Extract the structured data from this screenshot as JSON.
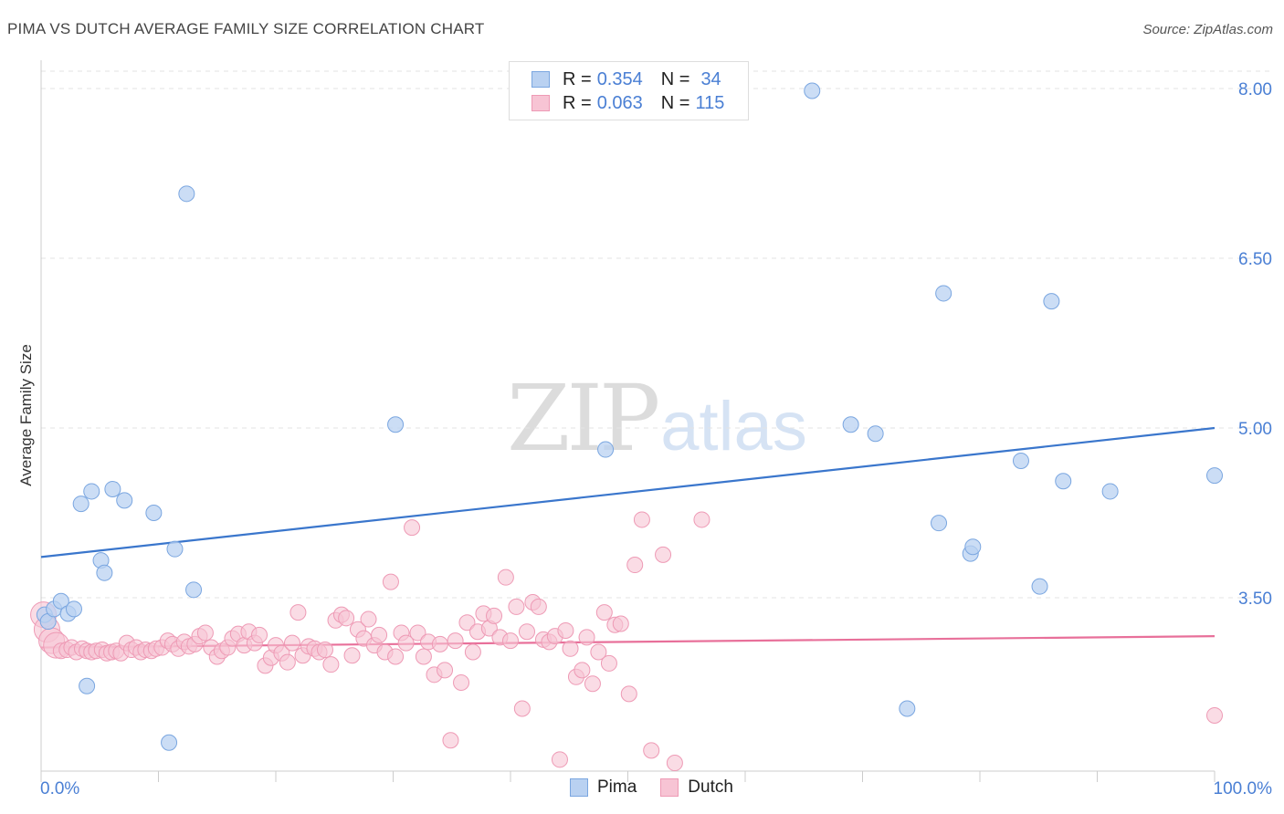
{
  "header": {
    "title": "PIMA VS DUTCH AVERAGE FAMILY SIZE CORRELATION CHART",
    "source": "Source: ZipAtlas.com"
  },
  "legend_top": {
    "pima": {
      "r_label": "R =",
      "r_value": "0.354",
      "n_label": "N =",
      "n_value": "34"
    },
    "dutch": {
      "r_label": "R =",
      "r_value": "0.063",
      "n_label": "N =",
      "n_value": "115"
    }
  },
  "legend_bottom": {
    "pima": "Pima",
    "dutch": "Dutch"
  },
  "watermark": {
    "zip": "ZIP",
    "atlas": "atlas"
  },
  "colors": {
    "pima_fill": "#b9d1f1",
    "pima_stroke": "#7aa6e0",
    "pima_line": "#3a76cc",
    "dutch_fill": "#f7c4d4",
    "dutch_stroke": "#ee9ab5",
    "dutch_line": "#e8709a",
    "tick_text": "#4a7fd4",
    "grid": "#e3e3e3"
  },
  "chart_data": {
    "type": "scatter",
    "title": "PIMA VS DUTCH AVERAGE FAMILY SIZE CORRELATION CHART",
    "xlabel": "",
    "ylabel": "Average Family Size",
    "xlim": [
      0,
      100
    ],
    "ylim": [
      2.15,
      8.2
    ],
    "x_tick_labels": [
      "0.0%",
      "100.0%"
    ],
    "y_ticks": [
      3.5,
      5.0,
      6.5,
      8.0
    ],
    "y_tick_labels": [
      "3.50",
      "5.00",
      "6.50",
      "8.00"
    ],
    "grid": true,
    "legend_position": "top-center",
    "series": [
      {
        "name": "Pima",
        "points": [
          [
            0.3,
            3.35
          ],
          [
            0.6,
            3.29
          ],
          [
            1.1,
            3.4
          ],
          [
            1.7,
            3.47
          ],
          [
            2.3,
            3.36
          ],
          [
            2.8,
            3.4
          ],
          [
            3.4,
            4.33
          ],
          [
            3.9,
            2.72
          ],
          [
            4.3,
            4.44
          ],
          [
            5.1,
            3.83
          ],
          [
            5.4,
            3.72
          ],
          [
            6.1,
            4.46
          ],
          [
            7.1,
            4.36
          ],
          [
            9.6,
            4.25
          ],
          [
            10.9,
            2.22
          ],
          [
            11.4,
            3.93
          ],
          [
            12.4,
            7.07
          ],
          [
            13.0,
            3.57
          ],
          [
            30.2,
            5.03
          ],
          [
            48.1,
            4.81
          ],
          [
            65.7,
            7.98
          ],
          [
            69.0,
            5.03
          ],
          [
            71.1,
            4.95
          ],
          [
            73.8,
            2.52
          ],
          [
            76.5,
            4.16
          ],
          [
            76.9,
            6.19
          ],
          [
            79.2,
            3.89
          ],
          [
            79.4,
            3.95
          ],
          [
            83.5,
            4.71
          ],
          [
            85.1,
            3.6
          ],
          [
            86.1,
            6.12
          ],
          [
            87.1,
            4.53
          ],
          [
            91.1,
            4.44
          ],
          [
            100.0,
            4.58
          ]
        ],
        "trend": {
          "x": [
            0,
            100
          ],
          "y": [
            3.86,
            5.0
          ]
        }
      },
      {
        "name": "Dutch",
        "points": [
          [
            0.2,
            3.35
          ],
          [
            0.5,
            3.22
          ],
          [
            0.9,
            3.12
          ],
          [
            1.3,
            3.08
          ],
          [
            1.7,
            3.03
          ],
          [
            2.2,
            3.04
          ],
          [
            2.6,
            3.06
          ],
          [
            3.0,
            3.02
          ],
          [
            3.5,
            3.05
          ],
          [
            3.9,
            3.03
          ],
          [
            4.3,
            3.02
          ],
          [
            4.7,
            3.03
          ],
          [
            5.2,
            3.04
          ],
          [
            5.6,
            3.01
          ],
          [
            6.0,
            3.02
          ],
          [
            6.4,
            3.03
          ],
          [
            6.8,
            3.01
          ],
          [
            7.3,
            3.1
          ],
          [
            7.7,
            3.04
          ],
          [
            8.1,
            3.06
          ],
          [
            8.5,
            3.02
          ],
          [
            8.9,
            3.04
          ],
          [
            9.4,
            3.03
          ],
          [
            9.8,
            3.05
          ],
          [
            10.3,
            3.06
          ],
          [
            10.8,
            3.12
          ],
          [
            11.2,
            3.09
          ],
          [
            11.7,
            3.05
          ],
          [
            12.2,
            3.11
          ],
          [
            12.6,
            3.07
          ],
          [
            13.1,
            3.09
          ],
          [
            13.5,
            3.16
          ],
          [
            14.0,
            3.19
          ],
          [
            14.5,
            3.06
          ],
          [
            15.0,
            2.98
          ],
          [
            15.4,
            3.03
          ],
          [
            15.9,
            3.06
          ],
          [
            16.3,
            3.14
          ],
          [
            16.8,
            3.18
          ],
          [
            17.3,
            3.08
          ],
          [
            17.7,
            3.2
          ],
          [
            18.2,
            3.1
          ],
          [
            18.6,
            3.17
          ],
          [
            19.1,
            2.9
          ],
          [
            19.6,
            2.97
          ],
          [
            20.0,
            3.08
          ],
          [
            20.5,
            3.01
          ],
          [
            21.0,
            2.93
          ],
          [
            21.4,
            3.1
          ],
          [
            21.9,
            3.37
          ],
          [
            22.3,
            2.99
          ],
          [
            22.8,
            3.07
          ],
          [
            23.3,
            3.05
          ],
          [
            23.7,
            3.02
          ],
          [
            24.2,
            3.04
          ],
          [
            24.7,
            2.91
          ],
          [
            25.1,
            3.3
          ],
          [
            25.6,
            3.35
          ],
          [
            26.0,
            3.32
          ],
          [
            26.5,
            2.99
          ],
          [
            27.0,
            3.22
          ],
          [
            27.5,
            3.14
          ],
          [
            27.9,
            3.31
          ],
          [
            28.4,
            3.08
          ],
          [
            28.8,
            3.17
          ],
          [
            29.3,
            3.02
          ],
          [
            29.8,
            3.64
          ],
          [
            30.2,
            2.98
          ],
          [
            30.7,
            3.19
          ],
          [
            31.1,
            3.1
          ],
          [
            31.6,
            4.12
          ],
          [
            32.1,
            3.19
          ],
          [
            32.6,
            2.98
          ],
          [
            33.0,
            3.11
          ],
          [
            33.5,
            2.82
          ],
          [
            34.0,
            3.09
          ],
          [
            34.4,
            2.86
          ],
          [
            34.9,
            2.24
          ],
          [
            35.3,
            3.12
          ],
          [
            35.8,
            2.75
          ],
          [
            36.3,
            3.28
          ],
          [
            36.8,
            3.02
          ],
          [
            37.2,
            3.2
          ],
          [
            37.7,
            3.36
          ],
          [
            38.2,
            3.23
          ],
          [
            38.6,
            3.34
          ],
          [
            39.1,
            3.15
          ],
          [
            39.6,
            3.68
          ],
          [
            40.0,
            3.12
          ],
          [
            40.5,
            3.42
          ],
          [
            41.0,
            2.52
          ],
          [
            41.4,
            3.2
          ],
          [
            41.9,
            3.46
          ],
          [
            42.4,
            3.42
          ],
          [
            42.8,
            3.13
          ],
          [
            43.3,
            3.11
          ],
          [
            43.8,
            3.16
          ],
          [
            44.2,
            2.07
          ],
          [
            44.7,
            3.21
          ],
          [
            45.1,
            3.05
          ],
          [
            45.6,
            2.8
          ],
          [
            46.1,
            2.86
          ],
          [
            46.5,
            3.15
          ],
          [
            47.0,
            2.74
          ],
          [
            47.5,
            3.02
          ],
          [
            48.0,
            3.37
          ],
          [
            48.4,
            2.92
          ],
          [
            48.9,
            3.26
          ],
          [
            49.4,
            3.27
          ],
          [
            50.1,
            2.65
          ],
          [
            50.6,
            3.79
          ],
          [
            51.2,
            4.19
          ],
          [
            52.0,
            2.15
          ],
          [
            53.0,
            3.88
          ],
          [
            54.0,
            2.04
          ],
          [
            56.3,
            4.19
          ],
          [
            100.0,
            2.46
          ]
        ],
        "trend": {
          "x": [
            0,
            100
          ],
          "y": [
            3.06,
            3.16
          ]
        }
      }
    ]
  }
}
